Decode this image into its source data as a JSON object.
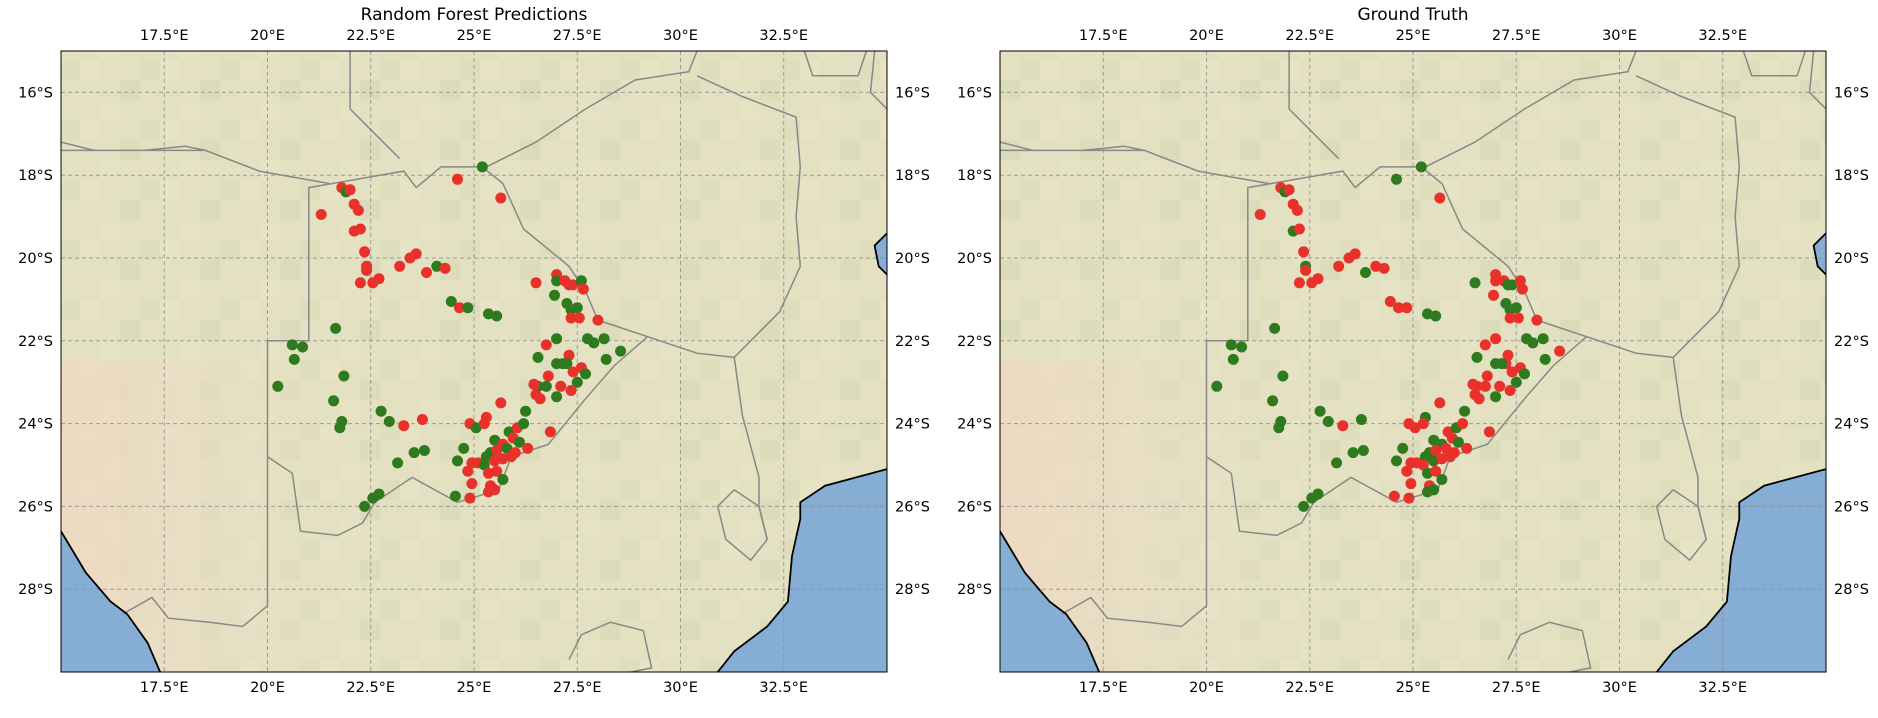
{
  "maps": [
    {
      "id": "pred",
      "title": "Random Forest Predictions"
    },
    {
      "id": "truth",
      "title": "Ground Truth"
    }
  ],
  "extent": {
    "lon_min": 15,
    "lon_max": 35,
    "lat_min": -30,
    "lat_max": -15
  },
  "lon_ticks": [
    {
      "value": 17.5,
      "label": "17.5°E"
    },
    {
      "value": 20,
      "label": "20°E"
    },
    {
      "value": 22.5,
      "label": "22.5°E"
    },
    {
      "value": 25,
      "label": "25°E"
    },
    {
      "value": 27.5,
      "label": "27.5°E"
    },
    {
      "value": 30,
      "label": "30°E"
    },
    {
      "value": 32.5,
      "label": "32.5°E"
    }
  ],
  "lat_ticks": [
    {
      "value": -16,
      "label": "16°S"
    },
    {
      "value": -18,
      "label": "18°S"
    },
    {
      "value": -20,
      "label": "20°S"
    },
    {
      "value": -22,
      "label": "22°S"
    },
    {
      "value": -24,
      "label": "24°S"
    },
    {
      "value": -26,
      "label": "26°S"
    },
    {
      "value": -28,
      "label": "28°S"
    }
  ],
  "colors": {
    "class_red": "#e8312a",
    "class_green": "#2e7a1e",
    "ocean": "#86aed4",
    "land": "#e4e2c2",
    "border": "#888888",
    "coast": "#000000"
  },
  "points": [
    {
      "lon": 21.8,
      "lat": -18.3,
      "pred": "r",
      "truth": "r"
    },
    {
      "lon": 21.9,
      "lat": -18.4,
      "pred": "g",
      "truth": "g"
    },
    {
      "lon": 22.0,
      "lat": -18.35,
      "pred": "r",
      "truth": "r"
    },
    {
      "lon": 21.3,
      "lat": -18.95,
      "pred": "r",
      "truth": "r"
    },
    {
      "lon": 22.1,
      "lat": -18.7,
      "pred": "r",
      "truth": "r"
    },
    {
      "lon": 22.2,
      "lat": -18.85,
      "pred": "r",
      "truth": "r"
    },
    {
      "lon": 22.1,
      "lat": -19.35,
      "pred": "r",
      "truth": "g"
    },
    {
      "lon": 22.25,
      "lat": -19.3,
      "pred": "r",
      "truth": "r"
    },
    {
      "lon": 24.6,
      "lat": -18.1,
      "pred": "r",
      "truth": "g"
    },
    {
      "lon": 25.2,
      "lat": -17.8,
      "pred": "g",
      "truth": "g"
    },
    {
      "lon": 25.65,
      "lat": -18.55,
      "pred": "r",
      "truth": "r"
    },
    {
      "lon": 22.35,
      "lat": -19.85,
      "pred": "r",
      "truth": "r"
    },
    {
      "lon": 22.4,
      "lat": -20.2,
      "pred": "r",
      "truth": "g"
    },
    {
      "lon": 22.4,
      "lat": -20.3,
      "pred": "r",
      "truth": "r"
    },
    {
      "lon": 22.25,
      "lat": -20.6,
      "pred": "r",
      "truth": "r"
    },
    {
      "lon": 22.55,
      "lat": -20.6,
      "pred": "r",
      "truth": "r"
    },
    {
      "lon": 22.7,
      "lat": -20.5,
      "pred": "r",
      "truth": "r"
    },
    {
      "lon": 23.2,
      "lat": -20.2,
      "pred": "r",
      "truth": "r"
    },
    {
      "lon": 23.45,
      "lat": -20.0,
      "pred": "r",
      "truth": "r"
    },
    {
      "lon": 23.6,
      "lat": -19.9,
      "pred": "r",
      "truth": "r"
    },
    {
      "lon": 23.85,
      "lat": -20.35,
      "pred": "r",
      "truth": "g"
    },
    {
      "lon": 24.1,
      "lat": -20.2,
      "pred": "g",
      "truth": "r"
    },
    {
      "lon": 24.3,
      "lat": -20.25,
      "pred": "r",
      "truth": "r"
    },
    {
      "lon": 24.45,
      "lat": -21.05,
      "pred": "g",
      "truth": "r"
    },
    {
      "lon": 24.65,
      "lat": -21.2,
      "pred": "r",
      "truth": "r"
    },
    {
      "lon": 24.85,
      "lat": -21.2,
      "pred": "g",
      "truth": "r"
    },
    {
      "lon": 25.35,
      "lat": -21.35,
      "pred": "g",
      "truth": "g"
    },
    {
      "lon": 25.55,
      "lat": -21.4,
      "pred": "g",
      "truth": "g"
    },
    {
      "lon": 26.5,
      "lat": -20.6,
      "pred": "r",
      "truth": "g"
    },
    {
      "lon": 27.0,
      "lat": -20.4,
      "pred": "r",
      "truth": "r"
    },
    {
      "lon": 27.0,
      "lat": -20.55,
      "pred": "g",
      "truth": "r"
    },
    {
      "lon": 27.2,
      "lat": -20.55,
      "pred": "r",
      "truth": "r"
    },
    {
      "lon": 27.4,
      "lat": -20.65,
      "pred": "r",
      "truth": "g"
    },
    {
      "lon": 27.6,
      "lat": -20.55,
      "pred": "g",
      "truth": "r"
    },
    {
      "lon": 27.65,
      "lat": -20.75,
      "pred": "r",
      "truth": "r"
    },
    {
      "lon": 27.3,
      "lat": -20.65,
      "pred": "r",
      "truth": "g"
    },
    {
      "lon": 26.95,
      "lat": -20.9,
      "pred": "g",
      "truth": "r"
    },
    {
      "lon": 27.25,
      "lat": -21.1,
      "pred": "g",
      "truth": "g"
    },
    {
      "lon": 27.35,
      "lat": -21.25,
      "pred": "g",
      "truth": "g"
    },
    {
      "lon": 27.5,
      "lat": -21.2,
      "pred": "g",
      "truth": "g"
    },
    {
      "lon": 27.35,
      "lat": -21.45,
      "pred": "r",
      "truth": "r"
    },
    {
      "lon": 27.55,
      "lat": -21.45,
      "pred": "r",
      "truth": "r"
    },
    {
      "lon": 28.0,
      "lat": -21.5,
      "pred": "r",
      "truth": "r"
    },
    {
      "lon": 27.0,
      "lat": -21.95,
      "pred": "g",
      "truth": "r"
    },
    {
      "lon": 27.75,
      "lat": -21.95,
      "pred": "g",
      "truth": "g"
    },
    {
      "lon": 27.9,
      "lat": -22.05,
      "pred": "g",
      "truth": "g"
    },
    {
      "lon": 26.75,
      "lat": -22.1,
      "pred": "r",
      "truth": "r"
    },
    {
      "lon": 26.55,
      "lat": -22.4,
      "pred": "g",
      "truth": "g"
    },
    {
      "lon": 27.3,
      "lat": -22.35,
      "pred": "r",
      "truth": "r"
    },
    {
      "lon": 27.0,
      "lat": -22.55,
      "pred": "g",
      "truth": "g"
    },
    {
      "lon": 27.25,
      "lat": -22.55,
      "pred": "g",
      "truth": "r"
    },
    {
      "lon": 27.15,
      "lat": -22.55,
      "pred": "g",
      "truth": "g"
    },
    {
      "lon": 27.6,
      "lat": -22.65,
      "pred": "r",
      "truth": "r"
    },
    {
      "lon": 27.4,
      "lat": -22.75,
      "pred": "r",
      "truth": "r"
    },
    {
      "lon": 27.7,
      "lat": -22.8,
      "pred": "g",
      "truth": "g"
    },
    {
      "lon": 26.8,
      "lat": -22.85,
      "pred": "r",
      "truth": "r"
    },
    {
      "lon": 26.55,
      "lat": -23.1,
      "pred": "g",
      "truth": "r"
    },
    {
      "lon": 26.45,
      "lat": -23.05,
      "pred": "r",
      "truth": "r"
    },
    {
      "lon": 26.5,
      "lat": -23.3,
      "pred": "r",
      "truth": "r"
    },
    {
      "lon": 26.75,
      "lat": -23.1,
      "pred": "g",
      "truth": "r"
    },
    {
      "lon": 27.1,
      "lat": -23.1,
      "pred": "r",
      "truth": "r"
    },
    {
      "lon": 27.5,
      "lat": -23.0,
      "pred": "g",
      "truth": "g"
    },
    {
      "lon": 27.35,
      "lat": -23.2,
      "pred": "r",
      "truth": "r"
    },
    {
      "lon": 27.0,
      "lat": -23.35,
      "pred": "g",
      "truth": "g"
    },
    {
      "lon": 26.6,
      "lat": -23.4,
      "pred": "r",
      "truth": "r"
    },
    {
      "lon": 28.15,
      "lat": -21.95,
      "pred": "g",
      "truth": "g"
    },
    {
      "lon": 28.55,
      "lat": -22.25,
      "pred": "g",
      "truth": "r"
    },
    {
      "lon": 28.2,
      "lat": -22.45,
      "pred": "g",
      "truth": "g"
    },
    {
      "lon": 20.6,
      "lat": -22.1,
      "pred": "g",
      "truth": "g"
    },
    {
      "lon": 20.85,
      "lat": -22.15,
      "pred": "g",
      "truth": "g"
    },
    {
      "lon": 20.65,
      "lat": -22.45,
      "pred": "g",
      "truth": "g"
    },
    {
      "lon": 21.65,
      "lat": -21.7,
      "pred": "g",
      "truth": "g"
    },
    {
      "lon": 21.85,
      "lat": -22.85,
      "pred": "g",
      "truth": "g"
    },
    {
      "lon": 20.25,
      "lat": -23.1,
      "pred": "g",
      "truth": "g"
    },
    {
      "lon": 21.6,
      "lat": -23.45,
      "pred": "g",
      "truth": "g"
    },
    {
      "lon": 21.8,
      "lat": -23.95,
      "pred": "g",
      "truth": "g"
    },
    {
      "lon": 21.75,
      "lat": -24.1,
      "pred": "g",
      "truth": "g"
    },
    {
      "lon": 22.75,
      "lat": -23.7,
      "pred": "g",
      "truth": "g"
    },
    {
      "lon": 22.95,
      "lat": -23.95,
      "pred": "g",
      "truth": "g"
    },
    {
      "lon": 23.3,
      "lat": -24.05,
      "pred": "r",
      "truth": "r"
    },
    {
      "lon": 23.75,
      "lat": -23.9,
      "pred": "r",
      "truth": "g"
    },
    {
      "lon": 23.55,
      "lat": -24.7,
      "pred": "g",
      "truth": "g"
    },
    {
      "lon": 23.8,
      "lat": -24.65,
      "pred": "g",
      "truth": "g"
    },
    {
      "lon": 23.15,
      "lat": -24.95,
      "pred": "g",
      "truth": "g"
    },
    {
      "lon": 22.7,
      "lat": -25.7,
      "pred": "g",
      "truth": "g"
    },
    {
      "lon": 22.55,
      "lat": -25.8,
      "pred": "g",
      "truth": "g"
    },
    {
      "lon": 22.35,
      "lat": -26.0,
      "pred": "g",
      "truth": "g"
    },
    {
      "lon": 24.9,
      "lat": -24.0,
      "pred": "r",
      "truth": "r"
    },
    {
      "lon": 25.05,
      "lat": -24.1,
      "pred": "g",
      "truth": "r"
    },
    {
      "lon": 25.3,
      "lat": -23.85,
      "pred": "r",
      "truth": "g"
    },
    {
      "lon": 25.25,
      "lat": -24.0,
      "pred": "r",
      "truth": "r"
    },
    {
      "lon": 25.65,
      "lat": -23.5,
      "pred": "r",
      "truth": "r"
    },
    {
      "lon": 26.25,
      "lat": -23.7,
      "pred": "g",
      "truth": "g"
    },
    {
      "lon": 25.85,
      "lat": -24.2,
      "pred": "g",
      "truth": "r"
    },
    {
      "lon": 26.05,
      "lat": -24.1,
      "pred": "r",
      "truth": "g"
    },
    {
      "lon": 26.2,
      "lat": -24.0,
      "pred": "g",
      "truth": "r"
    },
    {
      "lon": 26.85,
      "lat": -24.2,
      "pred": "r",
      "truth": "r"
    },
    {
      "lon": 25.5,
      "lat": -24.4,
      "pred": "g",
      "truth": "g"
    },
    {
      "lon": 25.7,
      "lat": -24.5,
      "pred": "r",
      "truth": "g"
    },
    {
      "lon": 25.95,
      "lat": -24.35,
      "pred": "r",
      "truth": "r"
    },
    {
      "lon": 26.1,
      "lat": -24.45,
      "pred": "g",
      "truth": "g"
    },
    {
      "lon": 25.4,
      "lat": -24.7,
      "pred": "g",
      "truth": "g"
    },
    {
      "lon": 25.55,
      "lat": -24.65,
      "pred": "r",
      "truth": "r"
    },
    {
      "lon": 25.8,
      "lat": -24.6,
      "pred": "g",
      "truth": "r"
    },
    {
      "lon": 26.0,
      "lat": -24.7,
      "pred": "r",
      "truth": "r"
    },
    {
      "lon": 26.3,
      "lat": -24.6,
      "pred": "r",
      "truth": "r"
    },
    {
      "lon": 24.75,
      "lat": -24.6,
      "pred": "g",
      "truth": "g"
    },
    {
      "lon": 24.6,
      "lat": -24.9,
      "pred": "g",
      "truth": "g"
    },
    {
      "lon": 24.95,
      "lat": -24.95,
      "pred": "r",
      "truth": "r"
    },
    {
      "lon": 25.1,
      "lat": -24.95,
      "pred": "r",
      "truth": "r"
    },
    {
      "lon": 25.3,
      "lat": -24.8,
      "pred": "g",
      "truth": "g"
    },
    {
      "lon": 25.25,
      "lat": -25.0,
      "pred": "g",
      "truth": "r"
    },
    {
      "lon": 25.5,
      "lat": -24.9,
      "pred": "r",
      "truth": "g"
    },
    {
      "lon": 25.7,
      "lat": -24.85,
      "pred": "r",
      "truth": "r"
    },
    {
      "lon": 25.9,
      "lat": -24.8,
      "pred": "r",
      "truth": "r"
    },
    {
      "lon": 24.85,
      "lat": -25.15,
      "pred": "r",
      "truth": "r"
    },
    {
      "lon": 25.35,
      "lat": -25.2,
      "pred": "r",
      "truth": "g"
    },
    {
      "lon": 25.55,
      "lat": -25.15,
      "pred": "r",
      "truth": "r"
    },
    {
      "lon": 25.7,
      "lat": -25.35,
      "pred": "g",
      "truth": "g"
    },
    {
      "lon": 24.95,
      "lat": -25.45,
      "pred": "r",
      "truth": "r"
    },
    {
      "lon": 25.4,
      "lat": -25.5,
      "pred": "r",
      "truth": "r"
    },
    {
      "lon": 25.5,
      "lat": -25.6,
      "pred": "r",
      "truth": "g"
    },
    {
      "lon": 25.35,
      "lat": -25.65,
      "pred": "r",
      "truth": "g"
    },
    {
      "lon": 24.55,
      "lat": -25.75,
      "pred": "g",
      "truth": "r"
    },
    {
      "lon": 24.9,
      "lat": -25.8,
      "pred": "r",
      "truth": "r"
    }
  ]
}
